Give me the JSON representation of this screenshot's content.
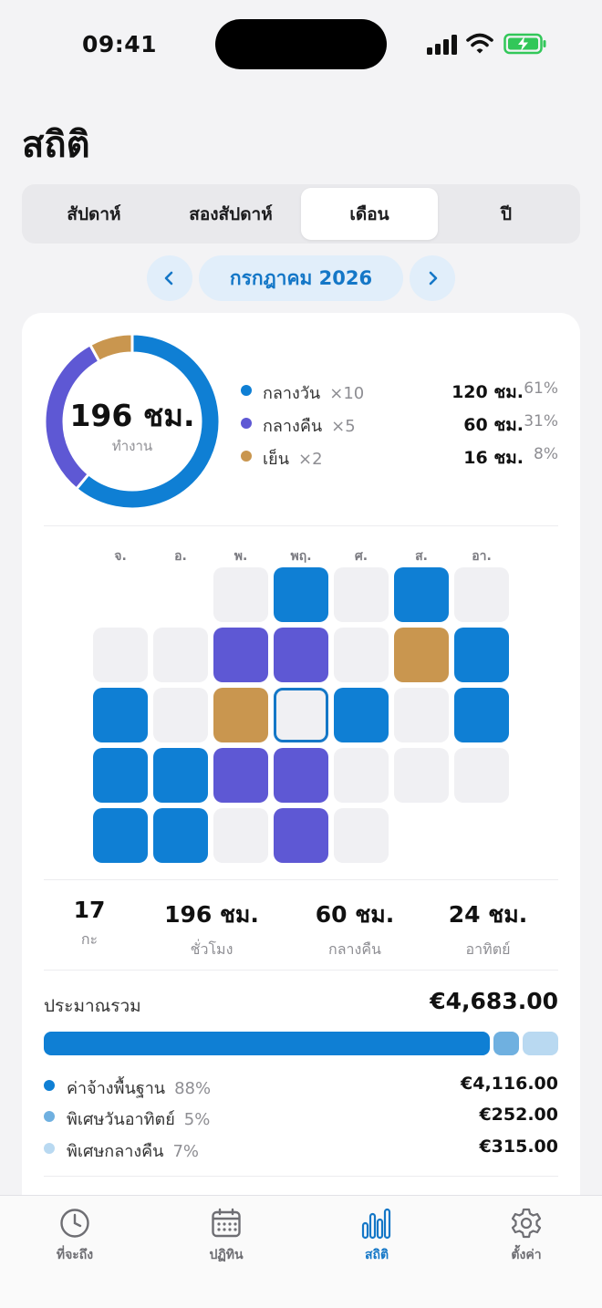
{
  "status_bar": {
    "time": "09:41"
  },
  "title": "สถิติ",
  "period_tabs": [
    {
      "label": "สัปดาห์"
    },
    {
      "label": "สองสัปดาห์"
    },
    {
      "label": "เดือน",
      "active": true
    },
    {
      "label": "ปี"
    }
  ],
  "month_nav": {
    "label": "กรกฎาคม 2026"
  },
  "summary": {
    "total_hours": "196 ชม.",
    "total_label": "ทำงาน",
    "legend": [
      {
        "name": "กลางวัน",
        "count": "×10",
        "hours": "120 ชม.",
        "pct": "61%",
        "color": "#0f7fd4",
        "fraction": 0.61
      },
      {
        "name": "กลางคืน",
        "count": "×5",
        "hours": "60 ชม.",
        "pct": "31%",
        "color": "#5e58d4",
        "fraction": 0.31
      },
      {
        "name": "เย็น",
        "count": "×2",
        "hours": "16 ชม.",
        "pct": "8%",
        "color": "#c9964f",
        "fraction": 0.08
      }
    ]
  },
  "calendar": {
    "weekdays": [
      "จ.",
      "อ.",
      "พ.",
      "พฤ.",
      "ศ.",
      "ส.",
      "อา."
    ],
    "first_offset": 2,
    "days": [
      "none",
      "day",
      "none",
      "day",
      "none",
      "none",
      "none",
      "night",
      "night",
      "none",
      "evening",
      "day",
      "day",
      "none",
      "evening",
      "today",
      "day",
      "none",
      "day",
      "day",
      "day",
      "night",
      "night",
      "none",
      "none",
      "none",
      "day",
      "day",
      "none",
      "night",
      "none"
    ]
  },
  "stats": [
    {
      "value": "17",
      "label": "กะ"
    },
    {
      "value": "196 ชม.",
      "label": "ชั่วโมง"
    },
    {
      "value": "60 ชม.",
      "label": "กลางคืน"
    },
    {
      "value": "24 ชม.",
      "label": "อาทิตย์"
    }
  ],
  "estimate": {
    "label": "ประมาณรวม",
    "total": "€4,683.00",
    "items": [
      {
        "name": "ค่าจ้างพื้นฐาน",
        "pct": "88%",
        "amount": "€4,116.00",
        "color": "#0f7fd4",
        "fraction": 0.88
      },
      {
        "name": "พิเศษวันอาทิตย์",
        "pct": "5%",
        "amount": "€252.00",
        "color": "#6fb0e0",
        "fraction": 0.05
      },
      {
        "name": "พิเศษกลางคืน",
        "pct": "7%",
        "amount": "€315.00",
        "color": "#b9d9f1",
        "fraction": 0.07
      }
    ]
  },
  "tabbar": [
    {
      "label": "ที่จะถึง",
      "icon": "clock-icon"
    },
    {
      "label": "ปฏิทิน",
      "icon": "calendar-icon"
    },
    {
      "label": "สถิติ",
      "icon": "bar-chart-icon",
      "active": true
    },
    {
      "label": "ตั้งค่า",
      "icon": "gear-icon"
    }
  ]
}
